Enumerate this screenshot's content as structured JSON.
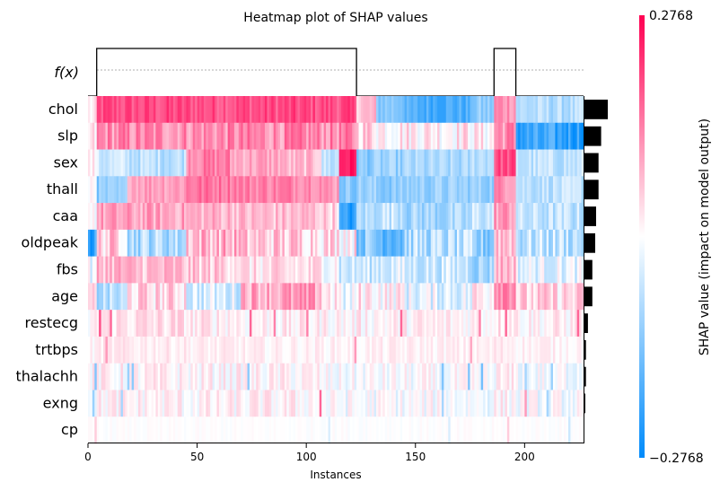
{
  "chart_data": {
    "type": "heatmap",
    "title": "Heatmap plot of SHAP values",
    "xlabel": "Instances",
    "fx_label": "f(x)",
    "xlim": [
      0,
      227
    ],
    "x_ticks": [
      0,
      50,
      100,
      150,
      200
    ],
    "colorbar": {
      "label": "SHAP value (impact on model output)",
      "min": -0.2768,
      "max": 0.2768,
      "min_label": "−0.2768",
      "max_label": "0.2768",
      "low_color": "#008bfb",
      "mid_color": "#ffffff",
      "high_color": "#ff0052"
    },
    "features": [
      "chol",
      "slp",
      "sex",
      "thall",
      "caa",
      "oldpeak",
      "fbs",
      "age",
      "restecg",
      "trtbps",
      "thalachh",
      "exng",
      "cp"
    ],
    "mean_abs_shap": [
      0.11,
      0.08,
      0.068,
      0.068,
      0.057,
      0.053,
      0.04,
      0.04,
      0.02,
      0.011,
      0.011,
      0.008,
      0.003
    ],
    "fx_levels": [
      {
        "x_start": 0,
        "x_end": 4,
        "level": 0
      },
      {
        "x_start": 4,
        "x_end": 123,
        "level": 1
      },
      {
        "x_start": 123,
        "x_end": 186,
        "level": 0
      },
      {
        "x_start": 186,
        "x_end": 196,
        "level": 1
      },
      {
        "x_start": 196,
        "x_end": 227,
        "level": 0
      }
    ],
    "segments": {
      "chol": [
        [
          0,
          4,
          0.05
        ],
        [
          4,
          123,
          0.7
        ],
        [
          123,
          132,
          0.25
        ],
        [
          132,
          145,
          -0.45
        ],
        [
          145,
          176,
          -0.7
        ],
        [
          176,
          186,
          -0.45
        ],
        [
          186,
          196,
          0.45
        ],
        [
          196,
          227,
          -0.3
        ]
      ],
      "slp": [
        [
          0,
          4,
          0.05
        ],
        [
          4,
          123,
          0.45
        ],
        [
          123,
          132,
          0.2
        ],
        [
          132,
          145,
          0.1
        ],
        [
          145,
          176,
          0.1
        ],
        [
          176,
          186,
          0.05
        ],
        [
          186,
          196,
          0.45
        ],
        [
          196,
          227,
          -0.8
        ]
      ],
      "sex": [
        [
          0,
          4,
          0.05
        ],
        [
          4,
          18,
          -0.2
        ],
        [
          18,
          45,
          -0.25
        ],
        [
          45,
          65,
          0.5
        ],
        [
          65,
          90,
          0.35
        ],
        [
          90,
          107,
          0.25
        ],
        [
          107,
          115,
          -0.25
        ],
        [
          115,
          123,
          0.9
        ],
        [
          123,
          132,
          -0.45
        ],
        [
          132,
          145,
          -0.4
        ],
        [
          145,
          176,
          -0.35
        ],
        [
          176,
          186,
          -0.25
        ],
        [
          186,
          196,
          0.7
        ],
        [
          196,
          227,
          -0.25
        ]
      ],
      "thall": [
        [
          0,
          4,
          0.05
        ],
        [
          4,
          18,
          -0.45
        ],
        [
          18,
          45,
          0.4
        ],
        [
          45,
          70,
          0.55
        ],
        [
          70,
          107,
          0.5
        ],
        [
          107,
          115,
          0.4
        ],
        [
          115,
          123,
          -0.45
        ],
        [
          123,
          132,
          -0.4
        ],
        [
          132,
          145,
          -0.45
        ],
        [
          145,
          176,
          -0.4
        ],
        [
          176,
          186,
          -0.4
        ],
        [
          186,
          196,
          0.45
        ],
        [
          196,
          227,
          -0.25
        ]
      ],
      "caa": [
        [
          0,
          4,
          0.05
        ],
        [
          4,
          45,
          0.35
        ],
        [
          45,
          70,
          0.3
        ],
        [
          70,
          107,
          0.25
        ],
        [
          107,
          115,
          0.2
        ],
        [
          115,
          123,
          -0.85
        ],
        [
          123,
          132,
          -0.3
        ],
        [
          132,
          145,
          -0.2
        ],
        [
          145,
          176,
          -0.35
        ],
        [
          176,
          186,
          -0.2
        ],
        [
          186,
          196,
          0.4
        ],
        [
          196,
          227,
          -0.25
        ]
      ],
      "oldpeak": [
        [
          0,
          4,
          -0.8
        ],
        [
          4,
          18,
          0.2
        ],
        [
          18,
          45,
          -0.3
        ],
        [
          45,
          70,
          0.3
        ],
        [
          70,
          107,
          0.2
        ],
        [
          107,
          115,
          0.15
        ],
        [
          115,
          123,
          0.1
        ],
        [
          123,
          132,
          -0.45
        ],
        [
          132,
          145,
          -0.55
        ],
        [
          145,
          176,
          -0.3
        ],
        [
          176,
          186,
          -0.45
        ],
        [
          186,
          196,
          0.3
        ],
        [
          196,
          227,
          -0.25
        ]
      ],
      "fbs": [
        [
          0,
          4,
          -0.1
        ],
        [
          4,
          18,
          0.3
        ],
        [
          18,
          45,
          0.25
        ],
        [
          45,
          70,
          0.2
        ],
        [
          70,
          107,
          0.1
        ],
        [
          107,
          115,
          0.05
        ],
        [
          115,
          123,
          -0.2
        ],
        [
          123,
          132,
          -0.2
        ],
        [
          132,
          145,
          -0.15
        ],
        [
          145,
          176,
          -0.2
        ],
        [
          176,
          186,
          -0.35
        ],
        [
          186,
          196,
          0.3
        ],
        [
          196,
          227,
          -0.1
        ]
      ],
      "age": [
        [
          0,
          4,
          0.05
        ],
        [
          4,
          18,
          -0.3
        ],
        [
          18,
          45,
          0.15
        ],
        [
          45,
          70,
          -0.15
        ],
        [
          70,
          107,
          0.35
        ],
        [
          107,
          115,
          0.1
        ],
        [
          115,
          123,
          -0.1
        ],
        [
          123,
          132,
          0.1
        ],
        [
          132,
          145,
          0.05
        ],
        [
          145,
          176,
          -0.1
        ],
        [
          176,
          186,
          0.1
        ],
        [
          186,
          196,
          0.55
        ],
        [
          196,
          227,
          0.15
        ]
      ],
      "restecg": [
        [
          0,
          4,
          0.03
        ],
        [
          4,
          45,
          0.12
        ],
        [
          45,
          70,
          0.08
        ],
        [
          70,
          107,
          0.05
        ],
        [
          107,
          115,
          0.05
        ],
        [
          115,
          123,
          0.03
        ],
        [
          123,
          176,
          0.05
        ],
        [
          176,
          186,
          0.05
        ],
        [
          186,
          196,
          0.12
        ],
        [
          196,
          227,
          0.05
        ]
      ],
      "trtbps": [
        [
          0,
          4,
          0.03
        ],
        [
          4,
          45,
          0.08
        ],
        [
          45,
          70,
          0.06
        ],
        [
          70,
          107,
          0.05
        ],
        [
          107,
          123,
          0.05
        ],
        [
          123,
          176,
          0.05
        ],
        [
          176,
          186,
          0.05
        ],
        [
          186,
          196,
          0.08
        ],
        [
          196,
          227,
          0.05
        ]
      ],
      "thalachh": [
        [
          0,
          4,
          0.02
        ],
        [
          4,
          45,
          0.04
        ],
        [
          45,
          70,
          0.03
        ],
        [
          70,
          107,
          0.03
        ],
        [
          107,
          123,
          -0.03
        ],
        [
          123,
          176,
          -0.02
        ],
        [
          176,
          186,
          -0.04
        ],
        [
          186,
          196,
          0.03
        ],
        [
          196,
          227,
          -0.03
        ]
      ],
      "exng": [
        [
          0,
          4,
          0.02
        ],
        [
          4,
          45,
          0.04
        ],
        [
          45,
          70,
          0.03
        ],
        [
          70,
          107,
          0.04
        ],
        [
          107,
          123,
          -0.02
        ],
        [
          123,
          176,
          -0.02
        ],
        [
          176,
          186,
          -0.03
        ],
        [
          186,
          196,
          0.03
        ],
        [
          196,
          227,
          -0.03
        ]
      ],
      "cp": [
        [
          0,
          227,
          0.0
        ]
      ]
    },
    "noise": {
      "chol": 0.15,
      "slp": 0.22,
      "sex": 0.15,
      "thall": 0.14,
      "caa": 0.18,
      "oldpeak": 0.25,
      "fbs": 0.2,
      "age": 0.22,
      "restecg": 0.15,
      "trtbps": 0.08,
      "thalachh": 0.15,
      "exng": 0.15,
      "cp": 0.03
    },
    "accents": {
      "chol": [],
      "slp": [],
      "sex": [],
      "thall": [],
      "caa": [],
      "oldpeak": [],
      "fbs": [],
      "age": [],
      "restecg": [
        [
          5,
          0.7
        ],
        [
          10,
          0.6
        ],
        [
          74,
          0.6
        ],
        [
          85,
          0.5
        ],
        [
          100,
          0.5
        ],
        [
          143,
          0.6
        ],
        [
          179,
          0.5
        ],
        [
          191,
          0.6
        ],
        [
          224,
          0.6
        ]
      ],
      "trtbps": [
        [
          8,
          0.4
        ],
        [
          122,
          0.4
        ],
        [
          175,
          0.35
        ]
      ],
      "thalachh": [
        [
          3,
          -0.5
        ],
        [
          18,
          -0.4
        ],
        [
          20,
          -0.45
        ],
        [
          73,
          -0.45
        ],
        [
          162,
          -0.5
        ],
        [
          174,
          -0.5
        ],
        [
          180,
          -0.55
        ],
        [
          200,
          -0.35
        ],
        [
          212,
          -0.4
        ]
      ],
      "exng": [
        [
          2,
          -0.4
        ],
        [
          15,
          -0.35
        ],
        [
          106,
          0.6
        ],
        [
          162,
          -0.35
        ],
        [
          200,
          0.4
        ],
        [
          210,
          -0.35
        ]
      ],
      "cp": [
        [
          3,
          0.2
        ],
        [
          110,
          -0.15
        ],
        [
          165,
          -0.15
        ],
        [
          192,
          0.2
        ],
        [
          220,
          -0.2
        ]
      ]
    }
  }
}
